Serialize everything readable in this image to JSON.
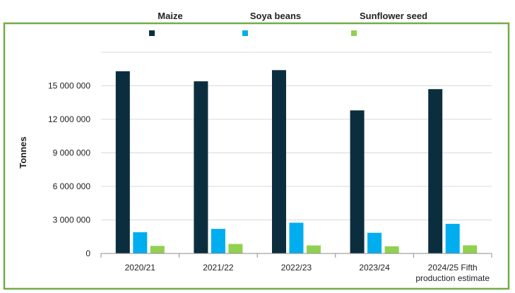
{
  "chart_data": {
    "type": "bar",
    "categories": [
      "2020/21",
      "2021/22",
      "2022/23",
      "2023/24",
      "2024/25 Fifth production estimate"
    ],
    "category_lines": [
      [
        "2020/21"
      ],
      [
        "2021/22"
      ],
      [
        "2022/23"
      ],
      [
        "2023/24"
      ],
      [
        "2024/25 Fifth",
        "production estimate"
      ]
    ],
    "series": [
      {
        "name": "Maize",
        "color": "#0b2e3e",
        "values": [
          16300000,
          15400000,
          16400000,
          12800000,
          14700000
        ]
      },
      {
        "name": "Soya beans",
        "color": "#00adef",
        "values": [
          1900000,
          2200000,
          2750000,
          1850000,
          2650000
        ]
      },
      {
        "name": "Sunflower seed",
        "color": "#92d050",
        "values": [
          680000,
          850000,
          720000,
          640000,
          730000
        ]
      }
    ],
    "ylabel": "Tonnes",
    "ylim": [
      0,
      18000000
    ],
    "yticks": [
      0,
      3000000,
      6000000,
      9000000,
      12000000,
      15000000
    ],
    "ytick_labels": [
      "0",
      "3 000 000",
      "6 000 000",
      "9 000 000",
      "12 000 000",
      "15 000 000"
    ],
    "grid": true,
    "legend_position": "top",
    "frame_color": "#70ad47"
  }
}
